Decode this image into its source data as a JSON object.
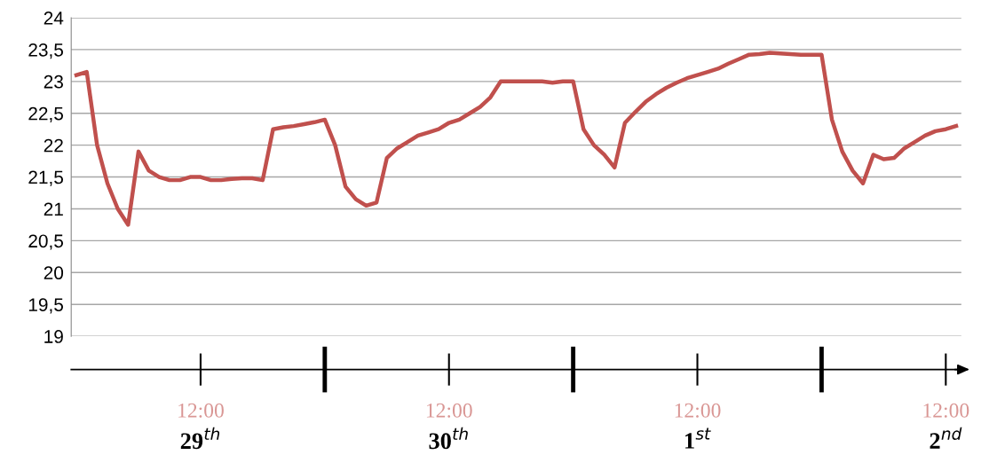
{
  "chart_data": {
    "type": "line",
    "categories": [
      null,
      null,
      null,
      null,
      null,
      null,
      null,
      null,
      null,
      null,
      null,
      null,
      "12:00",
      null,
      null,
      null,
      null,
      null,
      null,
      null,
      null,
      null,
      null,
      null,
      null,
      null,
      null,
      null,
      null,
      null,
      null,
      null,
      null,
      null,
      null,
      null,
      "12:00",
      null,
      null,
      null,
      null,
      null,
      null,
      null,
      null,
      null,
      null,
      null,
      null,
      null,
      null,
      null,
      null,
      null,
      null,
      null,
      null,
      null,
      null,
      null,
      "12:00",
      null,
      null,
      null,
      null,
      null,
      null,
      null,
      null,
      null,
      null,
      null,
      null,
      null,
      null,
      null,
      null,
      null,
      null,
      null,
      null,
      null,
      null,
      null,
      "12:00",
      null
    ],
    "series": [
      {
        "color": "#c0504d",
        "values": [
          23.1,
          23.15,
          22.0,
          21.4,
          21.0,
          20.75,
          21.9,
          21.6,
          21.5,
          21.45,
          21.45,
          21.5,
          21.5,
          21.45,
          21.45,
          21.47,
          21.48,
          21.48,
          21.45,
          22.25,
          22.28,
          22.3,
          22.33,
          22.36,
          22.4,
          22.0,
          21.35,
          21.15,
          21.05,
          21.1,
          21.8,
          21.95,
          22.05,
          22.15,
          22.2,
          22.25,
          22.35,
          22.4,
          22.5,
          22.6,
          22.75,
          23.0,
          23.0,
          23.0,
          23.0,
          23.0,
          22.98,
          23.0,
          23.0,
          22.25,
          22.0,
          21.85,
          21.65,
          22.35,
          22.52,
          22.68,
          22.8,
          22.9,
          22.98,
          23.05,
          23.1,
          23.15,
          23.2,
          23.28,
          23.35,
          23.42,
          23.43,
          23.45,
          23.44,
          23.43,
          23.42,
          23.42,
          23.42,
          22.4,
          21.9,
          21.6,
          21.4,
          21.85,
          21.78,
          21.8,
          21.95,
          22.05,
          22.15,
          22.22,
          22.25,
          22.3
        ]
      }
    ],
    "ylim": [
      19,
      24
    ],
    "yticks": [
      19,
      {
        "value": 19.5,
        "label": "19,5"
      },
      20,
      {
        "value": 20.5,
        "label": "20,5"
      },
      21,
      {
        "value": 21.5,
        "label": "21,5"
      },
      22,
      {
        "value": 22.5,
        "label": "22,5"
      },
      23,
      {
        "value": 23.5,
        "label": "23,5"
      },
      24
    ],
    "annotations": [
      "29$^{th}$",
      "30$^{th}$",
      "1$^{st}$",
      "2$^{nd}$"
    ],
    "grid": "y",
    "legend": false,
    "marker": "none",
    "line_style": "solid"
  }
}
